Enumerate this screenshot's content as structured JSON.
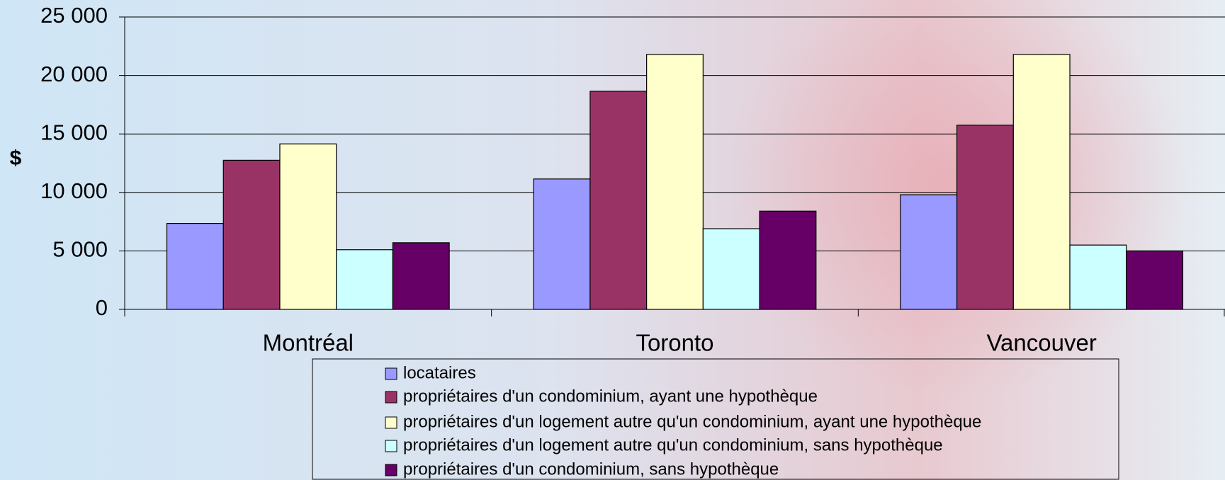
{
  "chart_data": {
    "type": "bar",
    "y_label": "$",
    "categories": [
      "Montréal",
      "Toronto",
      "Vancouver"
    ],
    "series": [
      {
        "name": "locataires",
        "color": "#9999ff",
        "values": [
          7350,
          11150,
          9800
        ]
      },
      {
        "name": "propriétaires d'un condominium, ayant une hypothèque",
        "color": "#993366",
        "values": [
          12750,
          18650,
          15750
        ]
      },
      {
        "name": "propriétaires d'un logement autre qu'un condominium, ayant une hypothèque",
        "color": "#ffffcc",
        "values": [
          14150,
          21800,
          21800
        ]
      },
      {
        "name": "propriétaires d'un logement autre qu'un condominium, sans hypothèque",
        "color": "#ccffff",
        "values": [
          5100,
          6900,
          5500
        ]
      },
      {
        "name": "propriétaires d'un condominium, sans hypothèque",
        "color": "#660066",
        "values": [
          5700,
          8400,
          5000
        ]
      }
    ],
    "ylim": [
      0,
      25000
    ],
    "yticks": [
      0,
      {
        "value": 5000,
        "label": "5 000"
      },
      {
        "value": 10000,
        "label": "10 000"
      },
      {
        "value": 15000,
        "label": "15 000"
      },
      {
        "value": 20000,
        "label": "20 000"
      },
      {
        "value": 25000,
        "label": "25 000"
      }
    ],
    "grid": true
  }
}
